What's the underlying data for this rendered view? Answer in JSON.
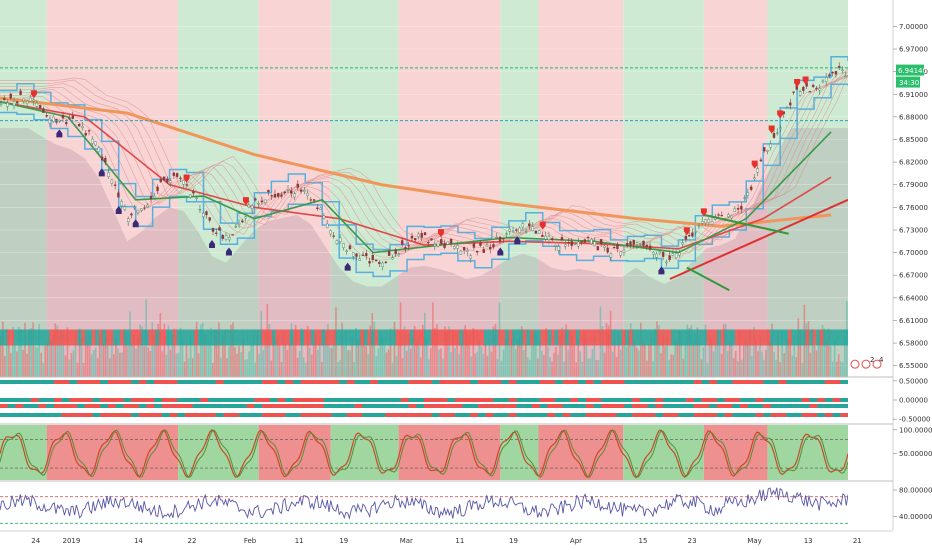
{
  "chart_data": [
    {
      "type": "line",
      "pane": "price",
      "y_ticks": [
        "7.00000",
        "6.97000",
        "6.94000",
        "6.91000",
        "6.88000",
        "6.85000",
        "6.82000",
        "6.79000",
        "6.76000",
        "6.73000",
        "6.70000",
        "6.67000",
        "6.64000",
        "6.61000",
        "6.58000",
        "6.55000"
      ],
      "tick_values": [
        7.0,
        6.97,
        6.94,
        6.91,
        6.88,
        6.85,
        6.82,
        6.79,
        6.76,
        6.73,
        6.7,
        6.67,
        6.64,
        6.61,
        6.58,
        6.55
      ],
      "ylim": [
        6.535,
        7.035
      ],
      "last_price_label": "6.94140",
      "last_price": 6.9414,
      "countdown_label": "34:30",
      "resistance_level": 6.945,
      "support_level": 6.875,
      "x_categories": [
        "24",
        "2019",
        "14",
        "22",
        "Feb",
        "11",
        "19",
        "Mar",
        "11",
        "19",
        "Apr",
        "15",
        "23",
        "May",
        "13",
        "21"
      ],
      "x_positions": [
        0.04,
        0.08,
        0.155,
        0.215,
        0.28,
        0.335,
        0.385,
        0.455,
        0.515,
        0.575,
        0.645,
        0.72,
        0.775,
        0.845,
        0.905,
        0.96
      ],
      "close_series": [
        {
          "x": 0.0,
          "y": 6.9
        },
        {
          "x": 0.03,
          "y": 6.905
        },
        {
          "x": 0.06,
          "y": 6.88
        },
        {
          "x": 0.09,
          "y": 6.87
        },
        {
          "x": 0.11,
          "y": 6.85
        },
        {
          "x": 0.13,
          "y": 6.8
        },
        {
          "x": 0.15,
          "y": 6.75
        },
        {
          "x": 0.17,
          "y": 6.765
        },
        {
          "x": 0.19,
          "y": 6.79
        },
        {
          "x": 0.21,
          "y": 6.8
        },
        {
          "x": 0.23,
          "y": 6.77
        },
        {
          "x": 0.25,
          "y": 6.73
        },
        {
          "x": 0.27,
          "y": 6.72
        },
        {
          "x": 0.29,
          "y": 6.755
        },
        {
          "x": 0.31,
          "y": 6.775
        },
        {
          "x": 0.33,
          "y": 6.78
        },
        {
          "x": 0.35,
          "y": 6.785
        },
        {
          "x": 0.37,
          "y": 6.77
        },
        {
          "x": 0.39,
          "y": 6.73
        },
        {
          "x": 0.41,
          "y": 6.7
        },
        {
          "x": 0.43,
          "y": 6.69
        },
        {
          "x": 0.45,
          "y": 6.69
        },
        {
          "x": 0.47,
          "y": 6.705
        },
        {
          "x": 0.49,
          "y": 6.72
        },
        {
          "x": 0.51,
          "y": 6.715
        },
        {
          "x": 0.53,
          "y": 6.71
        },
        {
          "x": 0.55,
          "y": 6.7
        },
        {
          "x": 0.57,
          "y": 6.705
        },
        {
          "x": 0.59,
          "y": 6.72
        },
        {
          "x": 0.61,
          "y": 6.735
        },
        {
          "x": 0.63,
          "y": 6.73
        },
        {
          "x": 0.65,
          "y": 6.715
        },
        {
          "x": 0.67,
          "y": 6.71
        },
        {
          "x": 0.69,
          "y": 6.715
        },
        {
          "x": 0.71,
          "y": 6.705
        },
        {
          "x": 0.73,
          "y": 6.7
        },
        {
          "x": 0.75,
          "y": 6.715
        },
        {
          "x": 0.77,
          "y": 6.7
        },
        {
          "x": 0.79,
          "y": 6.69
        },
        {
          "x": 0.81,
          "y": 6.715
        },
        {
          "x": 0.83,
          "y": 6.74
        },
        {
          "x": 0.85,
          "y": 6.745
        },
        {
          "x": 0.87,
          "y": 6.755
        },
        {
          "x": 0.885,
          "y": 6.79
        },
        {
          "x": 0.9,
          "y": 6.83
        },
        {
          "x": 0.92,
          "y": 6.87
        },
        {
          "x": 0.935,
          "y": 6.91
        },
        {
          "x": 0.95,
          "y": 6.915
        },
        {
          "x": 0.965,
          "y": 6.92
        },
        {
          "x": 0.98,
          "y": 6.94
        }
      ],
      "moving_averages": [
        {
          "color": "#f0965a",
          "points": [
            {
              "x": 0.0,
              "y": 6.905
            },
            {
              "x": 0.15,
              "y": 6.885
            },
            {
              "x": 0.3,
              "y": 6.83
            },
            {
              "x": 0.45,
              "y": 6.79
            },
            {
              "x": 0.6,
              "y": 6.765
            },
            {
              "x": 0.75,
              "y": 6.745
            },
            {
              "x": 0.85,
              "y": 6.735
            },
            {
              "x": 0.98,
              "y": 6.75
            }
          ]
        },
        {
          "color": "#e04848",
          "points": [
            {
              "x": 0.0,
              "y": 6.9
            },
            {
              "x": 0.1,
              "y": 6.88
            },
            {
              "x": 0.2,
              "y": 6.79
            },
            {
              "x": 0.3,
              "y": 6.76
            },
            {
              "x": 0.4,
              "y": 6.745
            },
            {
              "x": 0.5,
              "y": 6.71
            },
            {
              "x": 0.6,
              "y": 6.715
            },
            {
              "x": 0.7,
              "y": 6.712
            },
            {
              "x": 0.8,
              "y": 6.705
            },
            {
              "x": 0.9,
              "y": 6.745
            },
            {
              "x": 0.98,
              "y": 6.8
            }
          ]
        },
        {
          "color": "#3a9a4a",
          "points": [
            {
              "x": 0.0,
              "y": 6.9
            },
            {
              "x": 0.08,
              "y": 6.88
            },
            {
              "x": 0.16,
              "y": 6.77
            },
            {
              "x": 0.24,
              "y": 6.775
            },
            {
              "x": 0.3,
              "y": 6.745
            },
            {
              "x": 0.38,
              "y": 6.77
            },
            {
              "x": 0.44,
              "y": 6.7
            },
            {
              "x": 0.52,
              "y": 6.71
            },
            {
              "x": 0.6,
              "y": 6.72
            },
            {
              "x": 0.7,
              "y": 6.715
            },
            {
              "x": 0.8,
              "y": 6.7
            },
            {
              "x": 0.88,
              "y": 6.745
            },
            {
              "x": 0.98,
              "y": 6.86
            }
          ]
        }
      ],
      "regime_bands": [
        {
          "from": 0.0,
          "to": 0.055,
          "state": "bull"
        },
        {
          "from": 0.055,
          "to": 0.21,
          "state": "bear"
        },
        {
          "from": 0.21,
          "to": 0.305,
          "state": "bull"
        },
        {
          "from": 0.305,
          "to": 0.39,
          "state": "bear"
        },
        {
          "from": 0.39,
          "to": 0.47,
          "state": "bull"
        },
        {
          "from": 0.47,
          "to": 0.59,
          "state": "bear"
        },
        {
          "from": 0.59,
          "to": 0.635,
          "state": "bull"
        },
        {
          "from": 0.635,
          "to": 0.735,
          "state": "bear"
        },
        {
          "from": 0.735,
          "to": 0.83,
          "state": "bull"
        },
        {
          "from": 0.83,
          "to": 0.905,
          "state": "bear"
        },
        {
          "from": 0.905,
          "to": 1.0,
          "state": "bull"
        }
      ],
      "trend_lines": [
        {
          "color": "#e03030",
          "from": {
            "x": 0.79,
            "y": 6.665
          },
          "to": {
            "x": 1.0,
            "y": 6.77
          }
        },
        {
          "color": "#2e9a3a",
          "from": {
            "x": 0.81,
            "y": 6.68
          },
          "to": {
            "x": 0.86,
            "y": 6.65
          }
        },
        {
          "color": "#2e9a3a",
          "from": {
            "x": 0.83,
            "y": 6.75
          },
          "to": {
            "x": 0.93,
            "y": 6.725
          }
        }
      ]
    },
    {
      "type": "bar",
      "pane": "trend-ribbons",
      "y_ticks": [
        "0.50000",
        "0.00000",
        "-0.50000"
      ],
      "tick_values": [
        0.5,
        0.0,
        -0.5
      ],
      "ylim": [
        -0.6,
        0.6
      ],
      "rows": 4
    },
    {
      "type": "line",
      "pane": "stochastic",
      "y_ticks": [
        "100.00000",
        "50.00000"
      ],
      "tick_values": [
        100,
        50
      ],
      "ylim": [
        -5,
        110
      ],
      "overbought": 80,
      "oversold": 20
    },
    {
      "type": "line",
      "pane": "rsi",
      "y_ticks": [
        "80.00000",
        "40.00000"
      ],
      "tick_values": [
        80,
        40
      ],
      "ylim": [
        20,
        92
      ],
      "upper_level": 70,
      "lower_level": 30
    }
  ],
  "colors": {
    "bull_band": "#cfead2",
    "bear_band": "#f8d4d4",
    "bull_volume": "#4ab9a8",
    "bear_volume": "#ef5d5d",
    "candle_up": "#26a69a",
    "candle_down": "#ef5350",
    "band_line": "#55b0df",
    "rsi_line": "#5757a8",
    "stoch_k": "#c64a2a",
    "stoch_d": "#5a8a3a",
    "dashed_green": "#24b56b",
    "dashed_blue": "#2aa0c8",
    "dashed_red": "#d06060"
  },
  "signal_markers": {
    "sell_x": [
      0.04,
      0.22,
      0.29,
      0.52,
      0.64,
      0.83,
      0.81,
      0.89,
      0.91,
      0.92,
      0.94,
      0.95
    ],
    "buy_x": [
      0.07,
      0.12,
      0.14,
      0.16,
      0.25,
      0.27,
      0.41,
      0.59,
      0.61,
      0.78
    ]
  },
  "misc": {
    "badge_a": "2",
    "badge_b": "4"
  }
}
